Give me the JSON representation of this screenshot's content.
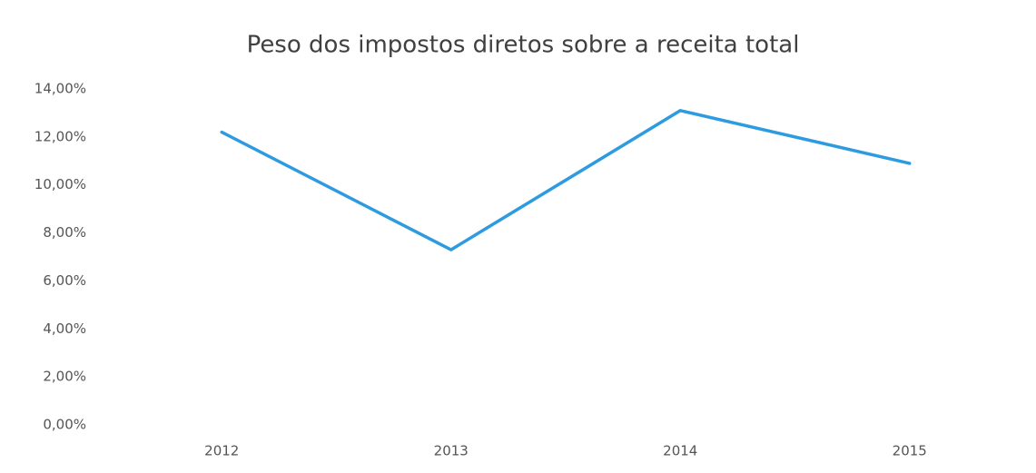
{
  "chart_data": {
    "type": "line",
    "title": "Peso dos impostos diretos sobre a receita total",
    "categories": [
      "2012",
      "2013",
      "2014",
      "2015"
    ],
    "values": [
      12.2,
      7.3,
      13.1,
      10.9
    ],
    "color": "#2e9be0",
    "ylim": [
      0,
      14
    ],
    "yticks": [
      {
        "value": 0,
        "label": "0,00%"
      },
      {
        "value": 2,
        "label": "2,00%"
      },
      {
        "value": 4,
        "label": "4,00%"
      },
      {
        "value": 6,
        "label": "6,00%"
      },
      {
        "value": 8,
        "label": "8,00%"
      },
      {
        "value": 10,
        "label": "10,00%"
      },
      {
        "value": 12,
        "label": "12,00%"
      },
      {
        "value": 14,
        "label": "14,00%"
      }
    ],
    "grid": false
  }
}
